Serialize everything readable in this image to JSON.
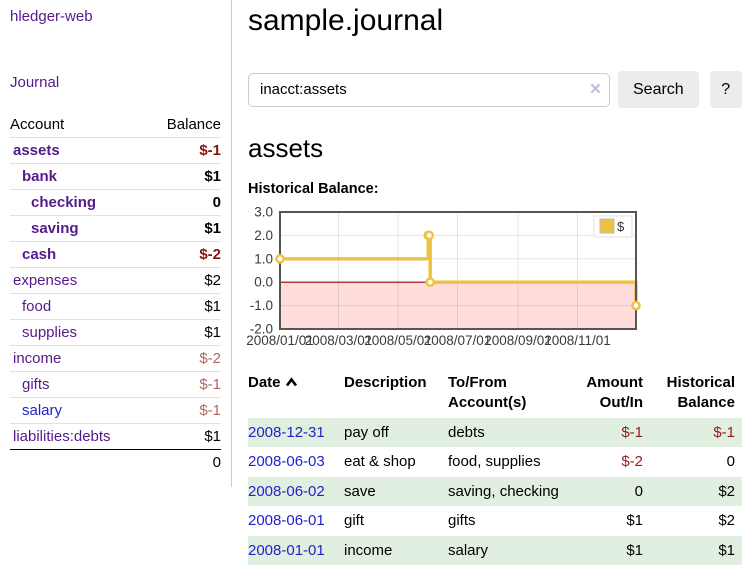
{
  "app": {
    "brand": "hledger-web"
  },
  "sidebar": {
    "nav": {
      "journal_label": "Journal"
    },
    "accounts_header": {
      "account": "Account",
      "balance": "Balance"
    },
    "accounts": [
      {
        "name": "assets",
        "depth": 1,
        "bold": true,
        "balance": "$-1",
        "negative": true,
        "blue": false
      },
      {
        "name": "bank",
        "depth": 2,
        "bold": true,
        "balance": "$1",
        "negative": false,
        "blue": false
      },
      {
        "name": "checking",
        "depth": 3,
        "bold": true,
        "balance": "0",
        "negative": false,
        "blue": false
      },
      {
        "name": "saving",
        "depth": 3,
        "bold": true,
        "balance": "$1",
        "negative": false,
        "blue": false
      },
      {
        "name": "cash",
        "depth": 2,
        "bold": true,
        "balance": "$-2",
        "negative": true,
        "blue": false
      },
      {
        "name": "expenses",
        "depth": 1,
        "bold": false,
        "balance": "$2",
        "negative": false,
        "blue": false
      },
      {
        "name": "food",
        "depth": 2,
        "bold": false,
        "balance": "$1",
        "negative": false,
        "blue": false
      },
      {
        "name": "supplies",
        "depth": 2,
        "bold": false,
        "balance": "$1",
        "negative": false,
        "blue": false
      },
      {
        "name": "income",
        "depth": 1,
        "bold": false,
        "balance": "$-2",
        "negative": true,
        "blue": false
      },
      {
        "name": "gifts",
        "depth": 2,
        "bold": false,
        "balance": "$-1",
        "negative": true,
        "blue": false
      },
      {
        "name": "salary",
        "depth": 2,
        "bold": false,
        "balance": "$-1",
        "negative": true,
        "blue": true
      },
      {
        "name": "liabilities:debts",
        "depth": 1,
        "bold": false,
        "balance": "$1",
        "negative": false,
        "blue": false
      }
    ],
    "total": "0"
  },
  "main": {
    "title": "sample.journal",
    "search": {
      "value": "inacct:assets",
      "clear_icon": "×",
      "button_label": "Search",
      "help_label": "?"
    },
    "account_heading": "assets",
    "chart_label": "Historical Balance:"
  },
  "chart_data": {
    "type": "line",
    "title": "Historical Balance:",
    "series": [
      {
        "name": "$",
        "color": "#edc240",
        "step": true,
        "points": [
          [
            "2008-01-01",
            1
          ],
          [
            "2008-06-01",
            2
          ],
          [
            "2008-06-02",
            2
          ],
          [
            "2008-06-03",
            0
          ],
          [
            "2008-12-31",
            -1
          ]
        ]
      }
    ],
    "ylim": [
      -2,
      3
    ],
    "yticks": [
      "3.0",
      "2.0",
      "1.0",
      "0.0",
      "-1.0",
      "-2.0"
    ],
    "xticks": [
      "2008/01/01",
      "2008/03/01",
      "2008/05/01",
      "2008/07/01",
      "2008/09/01",
      "2008/11/01"
    ],
    "x_range_days": 365,
    "grid": true,
    "negative_region_color": "#ffdddd",
    "zero_line_color": "#990000",
    "border_color": "#555555",
    "legend": {
      "label": "$",
      "position": "top-right"
    }
  },
  "register": {
    "headers": {
      "date": "Date",
      "description": "Description",
      "accounts": "To/From Account(s)",
      "amount": "Amount Out/In",
      "balance": "Historical Balance"
    },
    "rows": [
      {
        "date": "2008-12-31",
        "description": "pay off",
        "accounts": "debts",
        "amount": "$-1",
        "amount_negative": true,
        "balance": "$-1",
        "balance_negative": true
      },
      {
        "date": "2008-06-03",
        "description": "eat & shop",
        "accounts": "food, supplies",
        "amount": "$-2",
        "amount_negative": true,
        "balance": "0",
        "balance_negative": false
      },
      {
        "date": "2008-06-02",
        "description": "save",
        "accounts": "saving, checking",
        "amount": "0",
        "amount_negative": false,
        "balance": "$2",
        "balance_negative": false
      },
      {
        "date": "2008-06-01",
        "description": "gift",
        "accounts": "gifts",
        "amount": "$1",
        "amount_negative": false,
        "balance": "$2",
        "balance_negative": false
      },
      {
        "date": "2008-01-01",
        "description": "income",
        "accounts": "salary",
        "amount": "$1",
        "amount_negative": false,
        "balance": "$1",
        "balance_negative": false
      }
    ]
  }
}
